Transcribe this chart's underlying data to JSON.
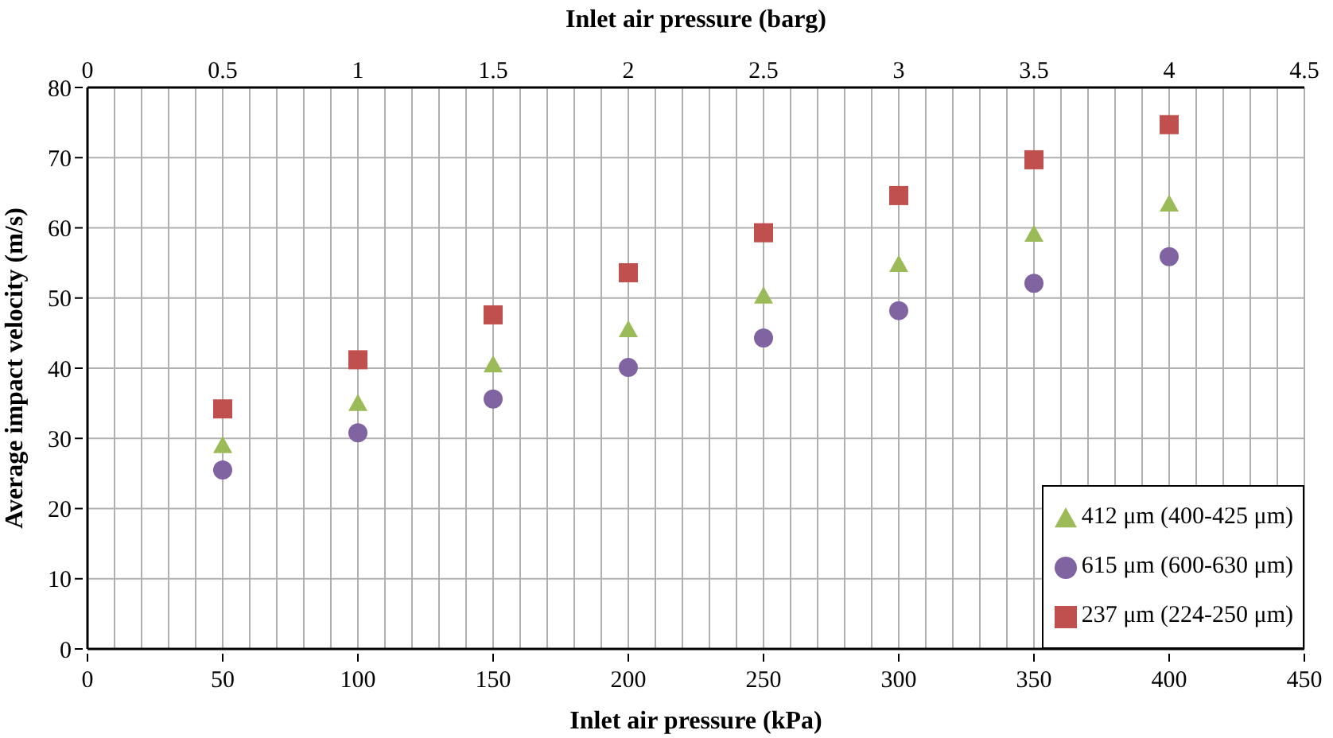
{
  "chart_data": {
    "type": "scatter",
    "xlabel": "Inlet air pressure (kPa)",
    "ylabel": "Average impact velocity (m/s)",
    "x2label": "Inlet air pressure (barg)",
    "x": [
      50,
      100,
      150,
      200,
      250,
      300,
      350,
      400
    ],
    "series": [
      {
        "name": "412 μm (400-425 μm)",
        "color": "#9bbb59",
        "marker": "triangle",
        "values": [
          29,
          35,
          40.5,
          45.5,
          50.3,
          54.8,
          59.1,
          63.4
        ]
      },
      {
        "name": "615 μm (600-630 μm)",
        "color": "#8064a2",
        "marker": "circle",
        "values": [
          25.5,
          30.8,
          35.6,
          40.1,
          44.3,
          48.2,
          52.1,
          55.9
        ]
      },
      {
        "name": "237 μm (224-250 μm)",
        "color": "#c0504d",
        "marker": "square",
        "values": [
          34.2,
          41.2,
          47.6,
          53.6,
          59.3,
          64.6,
          69.7,
          74.7
        ]
      }
    ],
    "xlim": [
      0,
      450
    ],
    "xticks": [
      0,
      {
        "value": 10,
        "label": null
      },
      {
        "value": 20,
        "label": null
      },
      {
        "value": 30,
        "label": null
      },
      {
        "value": 40,
        "label": null
      },
      50,
      {
        "value": 60,
        "label": null
      },
      {
        "value": 70,
        "label": null
      },
      {
        "value": 80,
        "label": null
      },
      {
        "value": 90,
        "label": null
      },
      100,
      {
        "value": 110,
        "label": null
      },
      {
        "value": 120,
        "label": null
      },
      {
        "value": 130,
        "label": null
      },
      {
        "value": 140,
        "label": null
      },
      150,
      {
        "value": 160,
        "label": null
      },
      {
        "value": 170,
        "label": null
      },
      {
        "value": 180,
        "label": null
      },
      {
        "value": 190,
        "label": null
      },
      200,
      {
        "value": 210,
        "label": null
      },
      {
        "value": 220,
        "label": null
      },
      {
        "value": 230,
        "label": null
      },
      {
        "value": 240,
        "label": null
      },
      250,
      {
        "value": 260,
        "label": null
      },
      {
        "value": 270,
        "label": null
      },
      {
        "value": 280,
        "label": null
      },
      {
        "value": 290,
        "label": null
      },
      300,
      {
        "value": 310,
        "label": null
      },
      {
        "value": 320,
        "label": null
      },
      {
        "value": 330,
        "label": null
      },
      {
        "value": 340,
        "label": null
      },
      350,
      {
        "value": 360,
        "label": null
      },
      {
        "value": 370,
        "label": null
      },
      {
        "value": 380,
        "label": null
      },
      {
        "value": 390,
        "label": null
      },
      400,
      {
        "value": 410,
        "label": null
      },
      {
        "value": 420,
        "label": null
      },
      {
        "value": 430,
        "label": null
      },
      {
        "value": 440,
        "label": null
      },
      450
    ],
    "x2lim": [
      0,
      4.5
    ],
    "x2ticks": [
      0,
      0.5,
      1,
      1.5,
      2,
      2.5,
      3,
      3.5,
      4,
      4.5
    ],
    "ylim": [
      0,
      80
    ],
    "yticks": [
      0,
      10,
      20,
      30,
      40,
      50,
      60,
      70,
      80
    ],
    "grid": true,
    "legend": "bottom right"
  }
}
